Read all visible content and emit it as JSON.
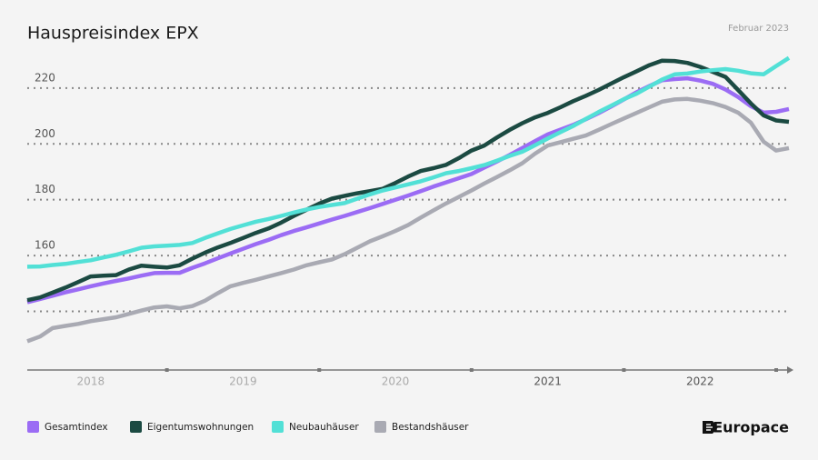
{
  "chart_data": {
    "type": "line",
    "title": "Hauspreisindex EPX",
    "subtitle": "Februar 2023",
    "brand": "Europace",
    "xlim": [
      0,
      60
    ],
    "xticks": [
      {
        "value": 5,
        "label": "2018"
      },
      {
        "value": 17,
        "label": "2019"
      },
      {
        "value": 29,
        "label": "2020"
      },
      {
        "value": 41,
        "label": "2021"
      },
      {
        "value": 53,
        "label": "2022"
      }
    ],
    "ylim": [
      119,
      232
    ],
    "yticks": [
      160,
      180,
      200,
      220
    ],
    "gridlines": [
      140,
      160,
      180,
      200,
      220
    ],
    "grid": true,
    "legend": "bottom",
    "series": [
      {
        "name": "Gesamtindex",
        "color": "#9b6cf4",
        "values": [
          143.3,
          144.4,
          145.6,
          146.8,
          147.9,
          149,
          150,
          150.9,
          151.8,
          152.8,
          153.7,
          153.8,
          153.8,
          155.6,
          157.2,
          159,
          160.7,
          162.4,
          164.1,
          165.6,
          167.3,
          168.8,
          170.1,
          171.5,
          172.9,
          174.2,
          175.6,
          177,
          178.5,
          180,
          181.5,
          183.1,
          184.7,
          186.2,
          187.7,
          189.2,
          191.5,
          193.7,
          196,
          198.5,
          201,
          203.4,
          205.1,
          206.8,
          208.8,
          211,
          213.4,
          215.9,
          218.5,
          220.7,
          222.8,
          223.2,
          223.5,
          222.7,
          221.5,
          219.5,
          216.8,
          213.5,
          211.2,
          211.5,
          212.5
        ]
      },
      {
        "name": "Eigentumswohnungen",
        "color": "#1b4a42",
        "values": [
          144,
          145,
          146.7,
          148.5,
          150.5,
          152.5,
          152.8,
          153,
          155,
          156.4,
          156,
          155.7,
          156.5,
          158.9,
          161,
          162.9,
          164.5,
          166.3,
          168.1,
          169.7,
          171.8,
          174.2,
          176.4,
          178.6,
          180.4,
          181.4,
          182.3,
          183.1,
          183.9,
          186,
          188.3,
          190.3,
          191.3,
          192.5,
          194.9,
          197.6,
          199.4,
          202.3,
          205,
          207.4,
          209.5,
          211.1,
          213.1,
          215.3,
          217.2,
          219.3,
          221.6,
          223.9,
          226,
          228.2,
          229.8,
          229.7,
          229,
          227.6,
          225.8,
          224,
          219.3,
          214.5,
          210.2,
          208.4,
          207.9
        ]
      },
      {
        "name": "Neubauhäuser",
        "color": "#52e0d6",
        "values": [
          156,
          156.1,
          156.6,
          157,
          157.7,
          158.3,
          159.3,
          160.3,
          161.5,
          162.8,
          163.3,
          163.5,
          163.8,
          164.5,
          166.3,
          167.9,
          169.5,
          170.8,
          172.1,
          173.1,
          174.2,
          175.4,
          176.5,
          177.4,
          178.1,
          178.8,
          180.4,
          181.9,
          183.3,
          184.4,
          185.5,
          186.6,
          188,
          189.5,
          190.3,
          191.3,
          192.4,
          194,
          195.7,
          197.2,
          199.5,
          201.9,
          204.2,
          206.4,
          208.9,
          211.4,
          213.7,
          216,
          218,
          220.5,
          223,
          224.9,
          225.2,
          225.9,
          226.4,
          226.8,
          226.2,
          225.3,
          224.9,
          227.9,
          230.8
        ]
      },
      {
        "name": "Bestandshäuser",
        "color": "#a9aab3",
        "values": [
          129.3,
          131,
          134,
          134.8,
          135.5,
          136.5,
          137.2,
          137.9,
          139.1,
          140.3,
          141.4,
          141.8,
          141.1,
          141.9,
          143.8,
          146.5,
          149,
          150.2,
          151.3,
          152.5,
          153.7,
          155,
          156.5,
          157.6,
          158.6,
          160.5,
          162.8,
          165.1,
          166.9,
          168.8,
          170.9,
          173.6,
          176.2,
          178.7,
          181,
          183.3,
          185.8,
          188.1,
          190.5,
          193.1,
          196.5,
          199.4,
          200.6,
          201.8,
          203,
          205,
          207.1,
          209.1,
          211.1,
          213.1,
          215.1,
          215.9,
          216.1,
          215.5,
          214.6,
          213.2,
          211.2,
          207.6,
          200.8,
          197.6,
          198.5
        ]
      }
    ]
  }
}
